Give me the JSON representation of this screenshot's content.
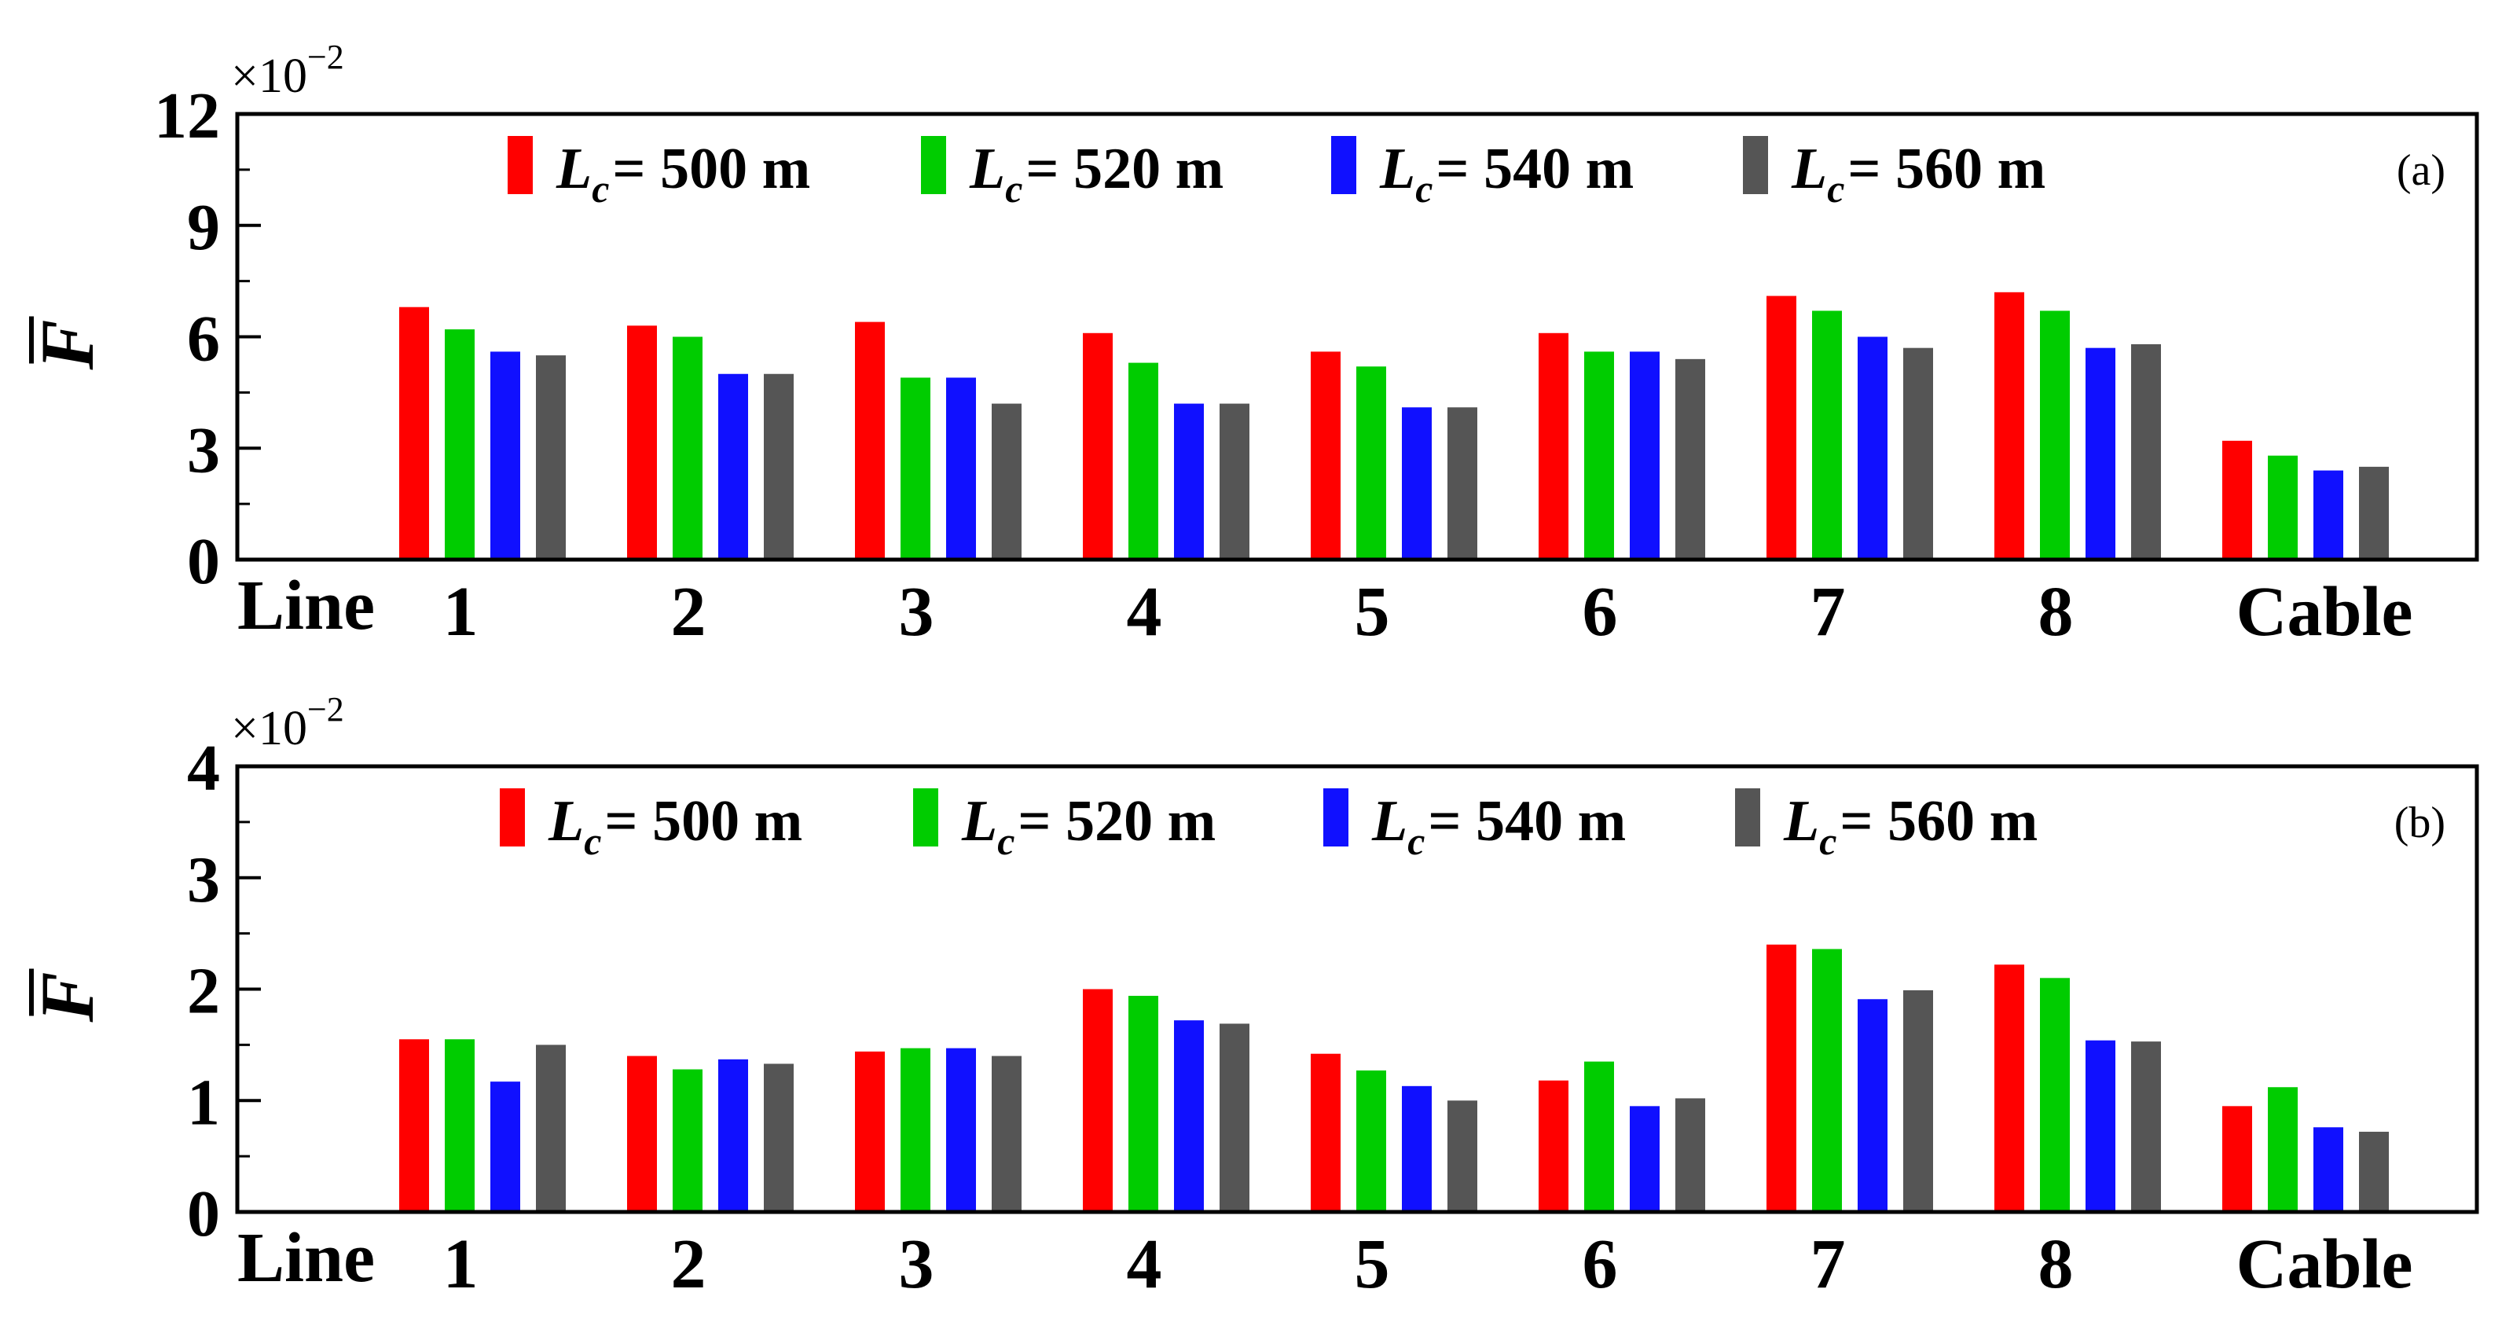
{
  "colors": [
    "#ff0000",
    "#00cc00",
    "#1010ff",
    "#555555"
  ],
  "legend": {
    "symbol": "L",
    "subscript": "c",
    "entries": [
      "= 500 m",
      "= 520 m",
      "= 540 m",
      "= 560 m"
    ]
  },
  "chart_data": [
    {
      "type": "bar",
      "panel_label": "(a)",
      "ylabel": "F",
      "multiplier": {
        "base": "×10",
        "exp": "−2"
      },
      "ylim": [
        0,
        12
      ],
      "yticks": [
        "0",
        "3",
        "6",
        "9",
        "12"
      ],
      "xlabel_lead": "Line",
      "categories": [
        "1",
        "2",
        "3",
        "4",
        "5",
        "6",
        "7",
        "8",
        "Cable"
      ],
      "legend_placement": "top",
      "series": [
        {
          "values": [
            6.8,
            6.3,
            6.4,
            6.1,
            5.6,
            6.1,
            7.1,
            7.2,
            3.2
          ]
        },
        {
          "values": [
            6.2,
            6.0,
            4.9,
            5.3,
            5.2,
            5.6,
            6.7,
            6.7,
            2.8
          ]
        },
        {
          "values": [
            5.6,
            5.0,
            4.9,
            4.2,
            4.1,
            5.6,
            6.0,
            5.7,
            2.4
          ]
        },
        {
          "values": [
            5.5,
            5.0,
            4.2,
            4.2,
            4.1,
            5.4,
            5.7,
            5.8,
            2.5
          ]
        }
      ]
    },
    {
      "type": "bar",
      "panel_label": "(b)",
      "ylabel": "F",
      "multiplier": {
        "base": "×10",
        "exp": "−2"
      },
      "ylim": [
        0,
        4
      ],
      "yticks": [
        "0",
        "1",
        "2",
        "3",
        "4"
      ],
      "xlabel_lead": "Line",
      "categories": [
        "1",
        "2",
        "3",
        "4",
        "5",
        "6",
        "7",
        "8",
        "Cable"
      ],
      "legend_placement": "top",
      "series": [
        {
          "values": [
            1.55,
            1.4,
            1.44,
            2.0,
            1.42,
            1.18,
            2.4,
            2.22,
            0.95
          ]
        },
        {
          "values": [
            1.55,
            1.28,
            1.47,
            1.94,
            1.27,
            1.35,
            2.36,
            2.1,
            1.12
          ]
        },
        {
          "values": [
            1.17,
            1.37,
            1.47,
            1.72,
            1.13,
            0.95,
            1.91,
            1.54,
            0.76
          ]
        },
        {
          "values": [
            1.5,
            1.33,
            1.4,
            1.69,
            1.0,
            1.02,
            1.99,
            1.53,
            0.72
          ]
        }
      ]
    }
  ]
}
